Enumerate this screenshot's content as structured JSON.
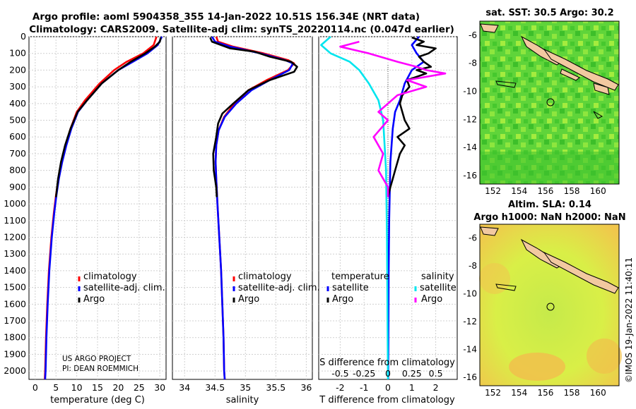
{
  "header": {
    "title_line1": "Argo profile: aoml 5904358_355 14-Jan-2022 10.51S 156.34E (NRT data)",
    "title_line2": "Climatology: CARS2009. Satellite-adj clim: synTS_20220114.nc (0.047d earlier)"
  },
  "depth_ticks": [
    "0",
    "100",
    "200",
    "300",
    "400",
    "500",
    "600",
    "700",
    "800",
    "900",
    "1000",
    "1100",
    "1200",
    "1300",
    "1400",
    "1500",
    "1600",
    "1700",
    "1800",
    "1900",
    "2000"
  ],
  "chart_data": [
    {
      "id": "temperature",
      "type": "line",
      "xlabel": "temperature (deg C)",
      "xlim": [
        -1.5,
        31.5
      ],
      "ylim": [
        2050,
        0
      ],
      "xticks": [
        "0",
        "5",
        "10",
        "15",
        "20",
        "25",
        "30"
      ],
      "xtick_values": [
        0,
        5,
        10,
        15,
        20,
        25,
        30
      ],
      "legend": [
        "climatology",
        "satellite-adj. clim.",
        "Argo"
      ],
      "credit_line1": "US ARGO PROJECT",
      "credit_line2": "PI: DEAN ROEMMICH",
      "series": [
        {
          "name": "climatology",
          "color": "#ff0000",
          "points": [
            [
              29.2,
              0
            ],
            [
              28.5,
              50
            ],
            [
              26.0,
              100
            ],
            [
              22.0,
              150
            ],
            [
              19.0,
              200
            ],
            [
              15.5,
              280
            ],
            [
              12.0,
              380
            ],
            [
              10.0,
              450
            ],
            [
              8.5,
              550
            ],
            [
              7.3,
              650
            ],
            [
              6.3,
              750
            ],
            [
              5.6,
              850
            ],
            [
              5.0,
              950
            ],
            [
              4.5,
              1050
            ],
            [
              3.9,
              1200
            ],
            [
              3.3,
              1400
            ],
            [
              2.9,
              1600
            ],
            [
              2.6,
              1800
            ],
            [
              2.4,
              2000
            ],
            [
              2.3,
              2050
            ]
          ]
        },
        {
          "name": "satellite-adj. clim.",
          "color": "#0000ff",
          "points": [
            [
              30.5,
              0
            ],
            [
              29.5,
              50
            ],
            [
              27.0,
              100
            ],
            [
              23.5,
              150
            ],
            [
              20.0,
              200
            ],
            [
              16.0,
              280
            ],
            [
              12.5,
              380
            ],
            [
              10.3,
              450
            ],
            [
              8.7,
              550
            ],
            [
              7.5,
              650
            ],
            [
              6.5,
              750
            ],
            [
              5.7,
              850
            ],
            [
              5.1,
              950
            ],
            [
              4.6,
              1050
            ],
            [
              4.0,
              1200
            ],
            [
              3.4,
              1400
            ],
            [
              3.0,
              1600
            ],
            [
              2.7,
              1800
            ],
            [
              2.5,
              2000
            ],
            [
              2.4,
              2050
            ]
          ]
        },
        {
          "name": "Argo",
          "color": "#000000",
          "points": [
            [
              30.2,
              5
            ],
            [
              30.0,
              30
            ],
            [
              28.8,
              60
            ],
            [
              26.5,
              100
            ],
            [
              23.0,
              150
            ],
            [
              20.0,
              200
            ],
            [
              16.0,
              280
            ],
            [
              12.5,
              380
            ],
            [
              10.2,
              450
            ],
            [
              8.5,
              550
            ],
            [
              7.2,
              650
            ],
            [
              6.2,
              750
            ],
            [
              5.5,
              850
            ],
            [
              5.0,
              960
            ]
          ]
        }
      ]
    },
    {
      "id": "salinity",
      "type": "line",
      "xlabel": "salinity",
      "xlim": [
        33.8,
        36.1
      ],
      "ylim": [
        2050,
        0
      ],
      "xticks": [
        "34",
        "34.5",
        "35",
        "35.5",
        "36"
      ],
      "xtick_values": [
        34,
        34.5,
        35,
        35.5,
        36
      ],
      "legend": [
        "climatology",
        "satellite-adj. clim.",
        "Argo"
      ],
      "series": [
        {
          "name": "climatology",
          "color": "#ff0000",
          "points": [
            [
              34.52,
              0
            ],
            [
              34.55,
              30
            ],
            [
              34.8,
              60
            ],
            [
              35.3,
              100
            ],
            [
              35.7,
              140
            ],
            [
              35.8,
              160
            ],
            [
              35.7,
              200
            ],
            [
              35.35,
              260
            ],
            [
              35.05,
              320
            ],
            [
              34.82,
              400
            ],
            [
              34.65,
              480
            ],
            [
              34.56,
              560
            ],
            [
              34.52,
              650
            ],
            [
              34.51,
              750
            ],
            [
              34.52,
              850
            ],
            [
              34.54,
              1000
            ],
            [
              34.57,
              1200
            ],
            [
              34.6,
              1400
            ],
            [
              34.62,
              1600
            ],
            [
              34.64,
              1800
            ],
            [
              34.65,
              2000
            ],
            [
              34.66,
              2050
            ]
          ]
        },
        {
          "name": "satellite-adj. clim.",
          "color": "#0000ff",
          "points": [
            [
              34.45,
              0
            ],
            [
              34.5,
              30
            ],
            [
              34.75,
              60
            ],
            [
              35.25,
              100
            ],
            [
              35.65,
              140
            ],
            [
              35.78,
              160
            ],
            [
              35.72,
              200
            ],
            [
              35.4,
              260
            ],
            [
              35.1,
              320
            ],
            [
              34.85,
              400
            ],
            [
              34.66,
              480
            ],
            [
              34.56,
              560
            ],
            [
              34.52,
              650
            ],
            [
              34.51,
              750
            ],
            [
              34.52,
              850
            ],
            [
              34.54,
              1000
            ],
            [
              34.57,
              1200
            ],
            [
              34.6,
              1400
            ],
            [
              34.62,
              1600
            ],
            [
              34.64,
              1800
            ],
            [
              34.65,
              2000
            ],
            [
              34.66,
              2050
            ]
          ]
        },
        {
          "name": "Argo",
          "color": "#000000",
          "points": [
            [
              34.42,
              5
            ],
            [
              34.45,
              30
            ],
            [
              34.75,
              70
            ],
            [
              35.15,
              90
            ],
            [
              35.4,
              120
            ],
            [
              35.75,
              150
            ],
            [
              35.85,
              180
            ],
            [
              35.8,
              210
            ],
            [
              35.4,
              260
            ],
            [
              35.05,
              320
            ],
            [
              34.8,
              400
            ],
            [
              34.62,
              460
            ],
            [
              34.55,
              520
            ],
            [
              34.52,
              600
            ],
            [
              34.47,
              700
            ],
            [
              34.48,
              800
            ],
            [
              34.52,
              900
            ],
            [
              34.53,
              960
            ]
          ]
        }
      ]
    },
    {
      "id": "difference",
      "type": "line",
      "xlabel": "T difference from climatology",
      "xlabel_top": "S difference from climatology",
      "xlim": [
        -2.9,
        2.9
      ],
      "ylim": [
        2050,
        0
      ],
      "xticks": [
        "-2",
        "-1",
        "0",
        "1",
        "2"
      ],
      "xtick_values": [
        -2,
        -1,
        0,
        1,
        2
      ],
      "s_ticks": [
        "-0.5",
        "-0.25",
        "0",
        "0.25",
        "0.5"
      ],
      "s_tick_values": [
        -0.5,
        -0.25,
        0,
        0.25,
        0.5
      ],
      "s_scale_per_T": 4,
      "legend_left_title": "temperature",
      "legend_right_title": "salinity",
      "legend_left": [
        "satellite",
        "Argo"
      ],
      "legend_right": [
        "satellite",
        "Argo"
      ],
      "series": [
        {
          "name": "temperature satellite",
          "color": "#0000ff",
          "points": [
            [
              1.3,
              0
            ],
            [
              1.0,
              50
            ],
            [
              1.2,
              100
            ],
            [
              1.5,
              150
            ],
            [
              1.0,
              200
            ],
            [
              0.7,
              280
            ],
            [
              0.5,
              380
            ],
            [
              0.3,
              450
            ],
            [
              0.2,
              550
            ],
            [
              0.15,
              650
            ],
            [
              0.1,
              750
            ],
            [
              0.08,
              900
            ],
            [
              0.05,
              1100
            ],
            [
              0.03,
              1400
            ],
            [
              0.02,
              1700
            ],
            [
              0.01,
              2050
            ]
          ]
        },
        {
          "name": "temperature Argo",
          "color": "#000000",
          "points": [
            [
              1.0,
              5
            ],
            [
              1.5,
              30
            ],
            [
              1.2,
              50
            ],
            [
              2.0,
              70
            ],
            [
              1.7,
              100
            ],
            [
              1.3,
              120
            ],
            [
              1.5,
              150
            ],
            [
              1.8,
              180
            ],
            [
              1.2,
              200
            ],
            [
              1.6,
              220
            ],
            [
              0.8,
              260
            ],
            [
              0.9,
              300
            ],
            [
              0.6,
              350
            ],
            [
              0.5,
              400
            ],
            [
              0.6,
              450
            ],
            [
              0.7,
              500
            ],
            [
              0.9,
              550
            ],
            [
              0.4,
              600
            ],
            [
              0.7,
              650
            ],
            [
              0.5,
              700
            ],
            [
              0.4,
              750
            ],
            [
              0.3,
              800
            ],
            [
              0.2,
              850
            ],
            [
              0.1,
              900
            ],
            [
              0.0,
              960
            ]
          ]
        },
        {
          "name": "salinity satellite",
          "color": "#00e5ee",
          "points": [
            [
              -0.6,
              0
            ],
            [
              -0.7,
              50
            ],
            [
              -0.6,
              100
            ],
            [
              -0.4,
              150
            ],
            [
              -0.3,
              200
            ],
            [
              -0.2,
              280
            ],
            [
              -0.1,
              380
            ],
            [
              -0.05,
              500
            ],
            [
              -0.02,
              800
            ],
            [
              -0.01,
              1200
            ],
            [
              0.0,
              2050
            ]
          ]
        },
        {
          "name": "salinity Argo",
          "color": "#ff00ff",
          "points": [
            [
              -0.3,
              30
            ],
            [
              -0.5,
              60
            ],
            [
              -0.2,
              100
            ],
            [
              0.1,
              150
            ],
            [
              0.3,
              180
            ],
            [
              0.4,
              200
            ],
            [
              0.6,
              220
            ],
            [
              0.2,
              260
            ],
            [
              0.4,
              300
            ],
            [
              0.1,
              350
            ],
            [
              0.0,
              400
            ],
            [
              -0.1,
              450
            ],
            [
              0.0,
              500
            ],
            [
              -0.15,
              600
            ],
            [
              -0.05,
              700
            ],
            [
              -0.1,
              800
            ],
            [
              0.0,
              900
            ],
            [
              0.0,
              960
            ]
          ]
        }
      ]
    }
  ],
  "sst_map": {
    "title": "sat. SST: 30.5 Argo: 30.2",
    "xticks": [
      "152",
      "154",
      "156",
      "158",
      "160"
    ],
    "yticks": [
      "-6",
      "-8",
      "-10",
      "-12",
      "-14",
      "-16"
    ]
  },
  "sla_map": {
    "title_line1": "Altim. SLA: 0.14",
    "title_line2": "Argo h1000: NaN h2000: NaN",
    "xticks": [
      "152",
      "154",
      "156",
      "158",
      "160"
    ],
    "yticks": [
      "-6",
      "-8",
      "-10",
      "-12",
      "-14",
      "-16"
    ]
  },
  "footer": {
    "watermark": "©IMOS 19-Jan-2022 11:40:11"
  }
}
